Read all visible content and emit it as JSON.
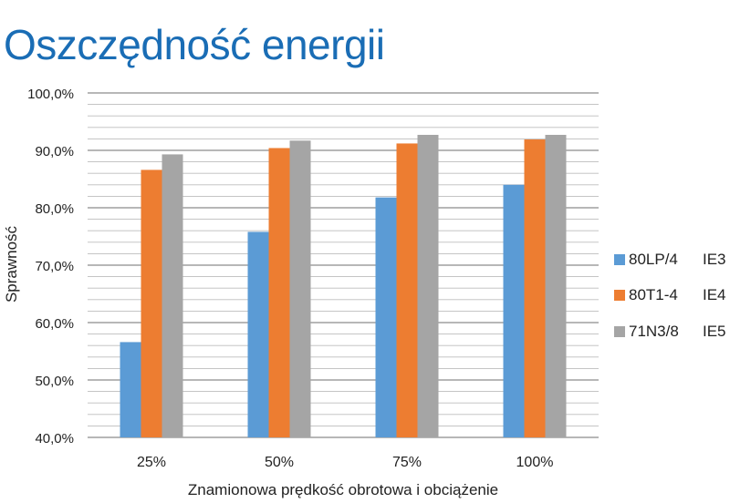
{
  "chart_data": {
    "type": "bar",
    "title": "Oszczędność energii",
    "xlabel": "Znamionowa prędkość obrotowa i obciążenie",
    "ylabel": "Sprawność",
    "categories": [
      "25%",
      "50%",
      "75%",
      "100%"
    ],
    "ylim": [
      40,
      100
    ],
    "y_tick_labels": [
      "40,0%",
      "50,0%",
      "60,0%",
      "70,0%",
      "80,0%",
      "90,0%",
      "100,0%"
    ],
    "y_ticks": [
      40,
      50,
      60,
      70,
      80,
      90,
      100
    ],
    "minor_grid_step": 2,
    "legend_position": "right",
    "series": [
      {
        "name": "80LP/4",
        "class": "IE3",
        "color": "#5b9bd5",
        "values": [
          56.6,
          75.8,
          81.8,
          84.0
        ]
      },
      {
        "name": "80T1-4",
        "class": "IE4",
        "color": "#ed7d31",
        "values": [
          86.6,
          90.4,
          91.2,
          91.9
        ]
      },
      {
        "name": "71N3/8",
        "class": "IE5",
        "color": "#a5a5a5",
        "values": [
          89.3,
          91.7,
          92.7,
          92.7
        ]
      }
    ]
  }
}
